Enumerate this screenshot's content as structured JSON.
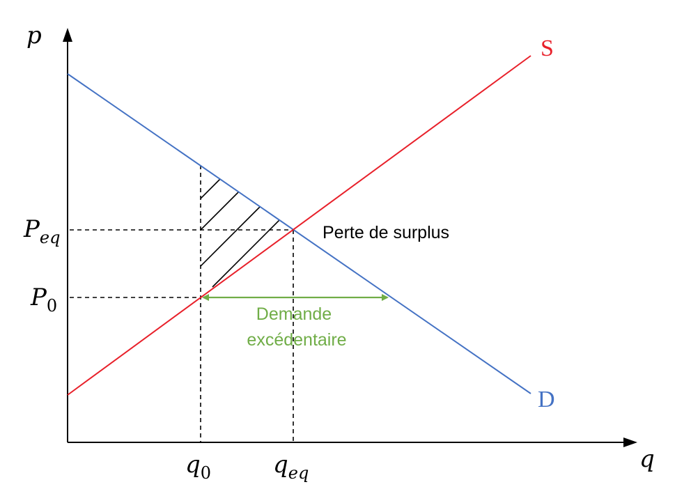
{
  "axes": {
    "y_label": "p",
    "x_label": "q"
  },
  "curves": {
    "supply": {
      "label": "S",
      "color": "#e8202a"
    },
    "demand": {
      "label": "D",
      "color": "#4472c4"
    }
  },
  "price_labels": {
    "p_eq": {
      "base": "P",
      "sub": "eq"
    },
    "p_0": {
      "base": "P",
      "sub": "0"
    }
  },
  "quantity_labels": {
    "q_0": {
      "base": "q",
      "sub": "0"
    },
    "q_eq": {
      "base": "q",
      "sub": "eq"
    }
  },
  "annotations": {
    "deadweight_loss": "Perte de surplus",
    "excess_demand_line1": "Demande",
    "excess_demand_line2": "excédentaire",
    "excess_demand_color": "#70ad47"
  }
}
